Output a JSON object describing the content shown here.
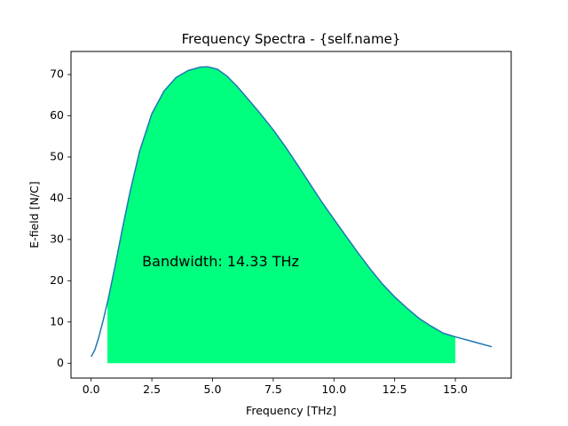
{
  "chart_data": {
    "type": "area",
    "title": "Frequency Spectra - {self.name}",
    "xlabel": "Frequency [THz]",
    "ylabel": "E-field [N/C]",
    "xlim": [
      -0.83,
      17.3
    ],
    "ylim": [
      -3.6,
      75.6
    ],
    "xticks": [
      0.0,
      2.5,
      5.0,
      7.5,
      10.0,
      12.5,
      15.0
    ],
    "xtick_labels": [
      "0.0",
      "2.5",
      "5.0",
      "7.5",
      "10.0",
      "12.5",
      "15.0"
    ],
    "yticks": [
      0,
      10,
      20,
      30,
      40,
      50,
      60,
      70
    ],
    "ytick_labels": [
      "0",
      "10",
      "20",
      "30",
      "40",
      "50",
      "60",
      "70"
    ],
    "grid": false,
    "series": [
      {
        "x": [
          0.0,
          0.15,
          0.3,
          0.5,
          0.7,
          1.0,
          1.3,
          1.6,
          2.0,
          2.5,
          3.0,
          3.5,
          4.0,
          4.5,
          4.8,
          5.2,
          5.6,
          6.0,
          6.5,
          7.0,
          7.5,
          8.0,
          8.5,
          9.0,
          9.5,
          10.0,
          10.5,
          11.0,
          11.5,
          12.0,
          12.5,
          13.0,
          13.5,
          14.0,
          14.5,
          15.0,
          15.5,
          16.0,
          16.5
        ],
        "y": [
          1.6,
          3.2,
          6.0,
          10.5,
          15.5,
          24.0,
          33.0,
          41.5,
          51.5,
          60.5,
          66.0,
          69.3,
          71.0,
          71.8,
          71.9,
          71.3,
          69.6,
          67.2,
          63.8,
          60.3,
          56.6,
          52.5,
          48.1,
          43.6,
          39.1,
          34.9,
          30.8,
          26.7,
          22.8,
          19.2,
          16.1,
          13.4,
          10.9,
          9.0,
          7.3,
          6.4,
          5.6,
          4.8,
          4.0
        ],
        "color": "#1f77b4"
      }
    ],
    "fill": {
      "x_from": 0.67,
      "x_to": 15.0,
      "color": "#00ff7f"
    },
    "annotation": {
      "text": "Bandwidth: 14.33 THz",
      "x": 2.1,
      "y": 24.5
    }
  }
}
